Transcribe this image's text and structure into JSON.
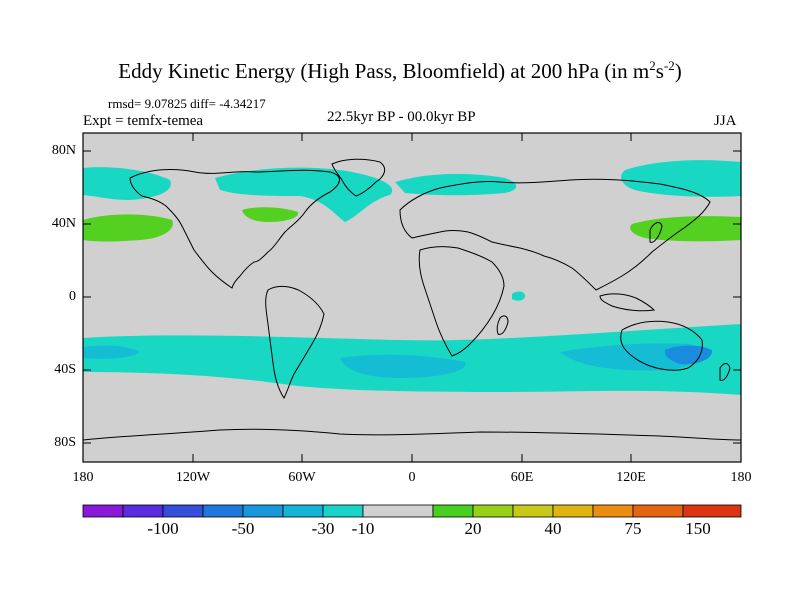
{
  "title": {
    "main": "Eddy Kinetic Energy (High Pass, Bloomfield) at 200 hPa (in m",
    "sup1": "2",
    "mid": "s",
    "sup2": "-2",
    "end": ")"
  },
  "stats": "rmsd= 9.07825 diff= -4.34217",
  "experiment": "Expt = temfx-temea",
  "period": "22.5kyr BP - 00.0kyr BP",
  "season": "JJA",
  "axes": {
    "lat_labels": [
      "80N",
      "40N",
      "0",
      "40S",
      "80S"
    ],
    "lon_labels": [
      "180",
      "120W",
      "60W",
      "0",
      "60E",
      "120E",
      "180"
    ]
  },
  "colorbar": {
    "colors": [
      "#8a18d8",
      "#5a2ce0",
      "#3450da",
      "#1e78dc",
      "#1898dc",
      "#14b4d8",
      "#18d4c8",
      "#d0d0d0",
      "#48d020",
      "#98d018",
      "#c8c818",
      "#e0b410",
      "#ec8c10",
      "#e46410",
      "#dc3410"
    ],
    "labels": [
      "-100",
      "-50",
      "-30",
      "-10",
      "20",
      "40",
      "75",
      "150"
    ]
  },
  "colors": {
    "land_ocean_neutral": "#d0d0d0",
    "cyan": "#18d8c4",
    "teal": "#14bcd4",
    "blue": "#1a8ce0",
    "green": "#54d020"
  }
}
